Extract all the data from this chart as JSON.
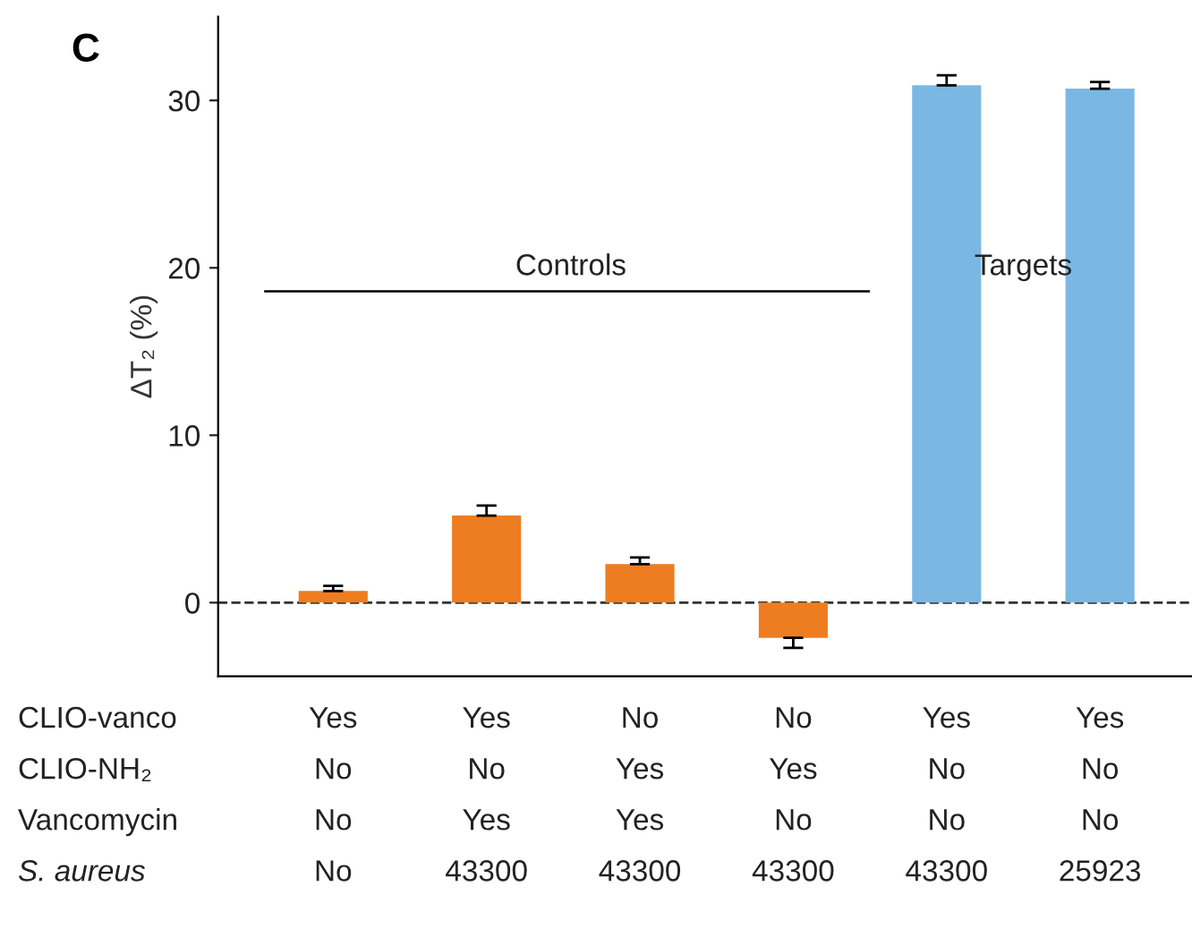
{
  "chart_data": {
    "type": "bar",
    "title": "C",
    "ylabel": "ΔT₂ (%)",
    "categories": [
      "Yes\nNo\nNo\nNo",
      "Yes\nNo\nYes\n43300",
      "No\nYes\nYes\n43300",
      "No\nYes\nNo\n43300",
      "Yes\nNo\nNo\n43300",
      "Yes\nNo\nNo\n25923"
    ],
    "values": [
      0.7,
      5.2,
      2.3,
      -2.1,
      30.9,
      30.7
    ],
    "errors": [
      0.3,
      0.6,
      0.4,
      0.6,
      0.6,
      0.4
    ],
    "colors": [
      "#ee7d22",
      "#ee7d22",
      "#ee7d22",
      "#ee7d22",
      "#7ab8e3",
      "#7ab8e3"
    ],
    "ylim": [
      -4.4,
      35
    ],
    "yticks": [
      0,
      10,
      20,
      30
    ],
    "ref_lines": [
      {
        "axis": "y",
        "value": 0,
        "line_style": "dashed",
        "color": "#333333"
      }
    ],
    "annotations": [
      "Controls",
      "Targets",
      "CLIO-vanco",
      "CLIO-NH₂",
      "Vancomycin",
      "S. aureus"
    ],
    "grid": false,
    "legend": false
  }
}
